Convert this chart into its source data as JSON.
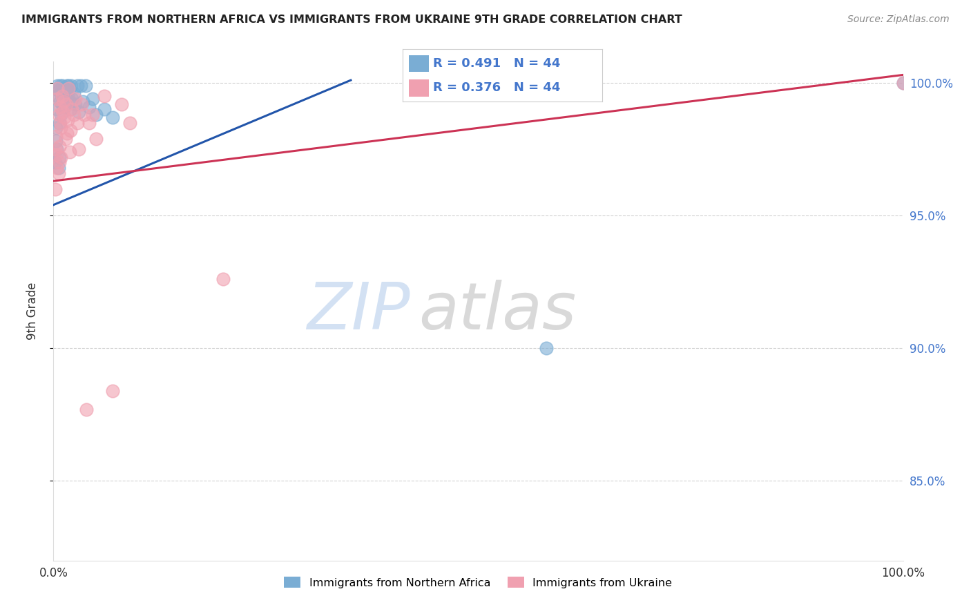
{
  "title": "IMMIGRANTS FROM NORTHERN AFRICA VS IMMIGRANTS FROM UKRAINE 9TH GRADE CORRELATION CHART",
  "source": "Source: ZipAtlas.com",
  "legend_label_blue": "Immigrants from Northern Africa",
  "legend_label_pink": "Immigrants from Ukraine",
  "ylabel": "9th Grade",
  "R_blue": 0.491,
  "N_blue": 44,
  "R_pink": 0.376,
  "N_pink": 44,
  "color_blue": "#7aadd4",
  "color_pink": "#f0a0b0",
  "color_blue_line": "#2255aa",
  "color_pink_line": "#cc3355",
  "xmin": 0.0,
  "xmax": 1.0,
  "ymin": 0.82,
  "ymax": 1.008,
  "blue_x": [
    0.002,
    0.003,
    0.003,
    0.004,
    0.004,
    0.005,
    0.005,
    0.006,
    0.006,
    0.007,
    0.007,
    0.008,
    0.008,
    0.009,
    0.009,
    0.01,
    0.01,
    0.011,
    0.012,
    0.013,
    0.013,
    0.014,
    0.015,
    0.016,
    0.017,
    0.018,
    0.019,
    0.02,
    0.021,
    0.022,
    0.024,
    0.026,
    0.028,
    0.03,
    0.032,
    0.035,
    0.038,
    0.042,
    0.046,
    0.05,
    0.06,
    0.07,
    0.58,
    1.0
  ],
  "blue_y": [
    0.97,
    0.978,
    0.983,
    0.975,
    0.99,
    0.995,
    0.999,
    0.968,
    0.997,
    0.972,
    0.985,
    0.999,
    0.993,
    0.996,
    0.988,
    0.999,
    0.992,
    0.994,
    0.996,
    0.998,
    0.991,
    0.993,
    0.997,
    0.999,
    0.995,
    0.999,
    0.993,
    0.99,
    0.999,
    0.994,
    0.996,
    0.992,
    0.999,
    0.989,
    0.999,
    0.993,
    0.999,
    0.991,
    0.994,
    0.988,
    0.99,
    0.987,
    0.9,
    1.0
  ],
  "pink_x": [
    0.002,
    0.003,
    0.003,
    0.004,
    0.004,
    0.005,
    0.005,
    0.006,
    0.006,
    0.007,
    0.007,
    0.008,
    0.008,
    0.009,
    0.009,
    0.01,
    0.011,
    0.012,
    0.013,
    0.014,
    0.015,
    0.016,
    0.017,
    0.018,
    0.019,
    0.02,
    0.022,
    0.024,
    0.026,
    0.028,
    0.03,
    0.033,
    0.036,
    0.039,
    0.042,
    0.046,
    0.05,
    0.06,
    0.07,
    0.08,
    0.09,
    0.2,
    0.55,
    1.0
  ],
  "pink_y": [
    0.96,
    0.975,
    0.98,
    0.973,
    0.968,
    0.994,
    0.998,
    0.966,
    0.988,
    0.97,
    0.976,
    0.991,
    0.985,
    0.983,
    0.972,
    0.995,
    0.989,
    0.993,
    0.987,
    0.979,
    0.992,
    0.981,
    0.986,
    0.998,
    0.974,
    0.982,
    0.99,
    0.988,
    0.994,
    0.985,
    0.975,
    0.992,
    0.988,
    0.877,
    0.985,
    0.988,
    0.979,
    0.995,
    0.884,
    0.992,
    0.985,
    0.926,
    1.0,
    1.0
  ],
  "yticks": [
    0.85,
    0.9,
    0.95,
    1.0
  ],
  "ytick_labels": [
    "85.0%",
    "90.0%",
    "95.0%",
    "100.0%"
  ],
  "xticks": [
    0.0,
    0.2,
    0.4,
    0.6,
    0.8,
    1.0
  ],
  "xtick_labels": [
    "0.0%",
    "",
    "",
    "",
    "",
    "100.0%"
  ],
  "right_ytick_color": "#4477cc",
  "watermark_zip_color": "#c8d8ee",
  "watermark_atlas_color": "#bbbbbb"
}
